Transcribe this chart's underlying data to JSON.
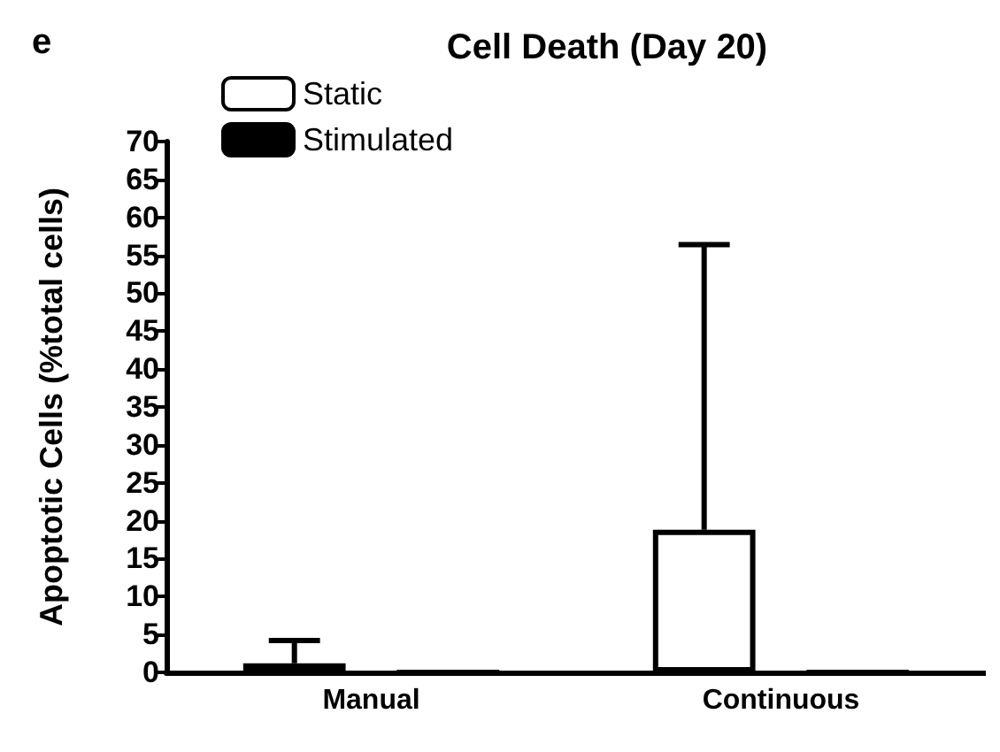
{
  "chart_data": {
    "type": "bar",
    "title": "Cell Death (Day 20)",
    "annotations": [
      "e"
    ],
    "ylabel": "Apoptotic Cells (%total cells)",
    "categories": [
      "Manual",
      "Continuous"
    ],
    "series": [
      {
        "name": "Static",
        "color": "#ffffff",
        "values": [
          1.2,
          18.8
        ],
        "errors": [
          [
            1.2,
            4.2
          ],
          [
            18.8,
            56.4
          ]
        ]
      },
      {
        "name": "Stimulated",
        "color": "#000000",
        "values": [
          0,
          0
        ]
      }
    ],
    "ylim": [
      0,
      70
    ],
    "yticks": [
      0,
      5,
      10,
      15,
      20,
      25,
      30,
      35,
      40,
      45,
      50,
      55,
      60,
      65,
      70
    ],
    "grid": false,
    "legend": "top left"
  }
}
